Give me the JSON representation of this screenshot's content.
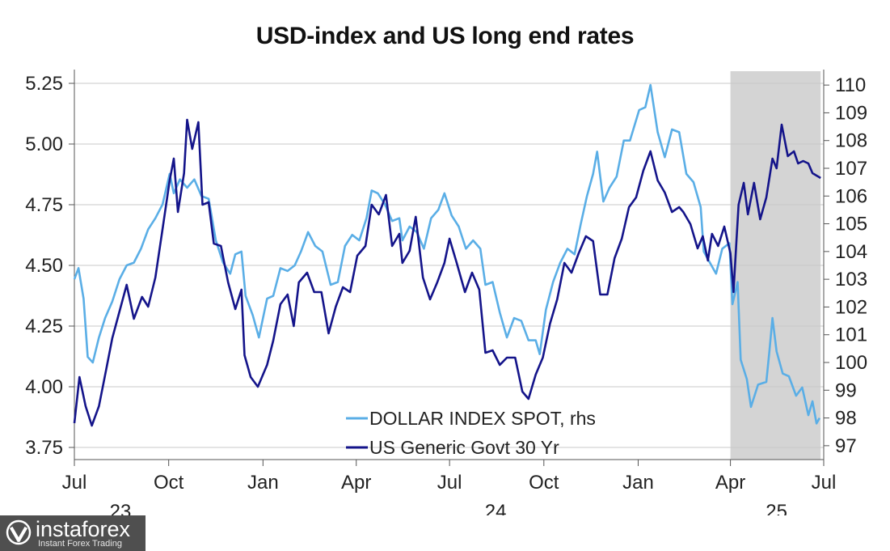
{
  "chart_data": {
    "type": "line",
    "title": "USD-index and US long end rates",
    "x_start": "2023-07-01",
    "x_end": "2025-07-01",
    "x_ticks": [
      {
        "date": "2023-07-01",
        "label": "Jul",
        "year": "23"
      },
      {
        "date": "2023-10-01",
        "label": "Oct",
        "year": ""
      },
      {
        "date": "2024-01-01",
        "label": "Jan",
        "year": ""
      },
      {
        "date": "2024-04-01",
        "label": "Apr",
        "year": ""
      },
      {
        "date": "2024-07-01",
        "label": "Jul",
        "year": "24"
      },
      {
        "date": "2024-10-01",
        "label": "Oct",
        "year": ""
      },
      {
        "date": "2025-01-01",
        "label": "Jan",
        "year": ""
      },
      {
        "date": "2025-04-01",
        "label": "Apr",
        "year": "25"
      },
      {
        "date": "2025-07-01",
        "label": "Jul",
        "year": ""
      }
    ],
    "y_left": {
      "lim": [
        3.7,
        5.3
      ],
      "ticks": [
        "3.75",
        "4.00",
        "4.25",
        "4.50",
        "4.75",
        "5.00",
        "5.25"
      ]
    },
    "y_right": {
      "lim": [
        96.5,
        110.5
      ],
      "ticks": [
        "97",
        "98",
        "99",
        "100",
        "101",
        "102",
        "103",
        "104",
        "105",
        "106",
        "107",
        "108",
        "109",
        "110"
      ]
    },
    "grid": true,
    "shaded_region": {
      "start": "2025-04-01",
      "end": "2025-06-28",
      "color": "#d4d4d4"
    },
    "legend_position": "bottom-center",
    "series": [
      {
        "name": "DOLLAR INDEX SPOT, rhs",
        "axis": "right",
        "color": "#5aaee6",
        "points": [
          [
            "2023-07-01",
            103.0
          ],
          [
            "2023-07-05",
            103.4
          ],
          [
            "2023-07-10",
            102.3
          ],
          [
            "2023-07-14",
            100.2
          ],
          [
            "2023-07-19",
            100.0
          ],
          [
            "2023-07-25",
            100.9
          ],
          [
            "2023-07-31",
            101.6
          ],
          [
            "2023-08-07",
            102.2
          ],
          [
            "2023-08-14",
            103.0
          ],
          [
            "2023-08-21",
            103.5
          ],
          [
            "2023-08-28",
            103.6
          ],
          [
            "2023-09-04",
            104.1
          ],
          [
            "2023-09-11",
            104.8
          ],
          [
            "2023-09-18",
            105.2
          ],
          [
            "2023-09-25",
            105.7
          ],
          [
            "2023-10-02",
            106.8
          ],
          [
            "2023-10-06",
            106.1
          ],
          [
            "2023-10-12",
            106.6
          ],
          [
            "2023-10-19",
            106.3
          ],
          [
            "2023-10-26",
            106.6
          ],
          [
            "2023-11-02",
            106.0
          ],
          [
            "2023-11-09",
            105.9
          ],
          [
            "2023-11-16",
            104.4
          ],
          [
            "2023-11-23",
            103.6
          ],
          [
            "2023-11-30",
            103.2
          ],
          [
            "2023-12-05",
            103.9
          ],
          [
            "2023-12-11",
            104.0
          ],
          [
            "2023-12-15",
            102.4
          ],
          [
            "2023-12-22",
            101.7
          ],
          [
            "2023-12-28",
            100.9
          ],
          [
            "2024-01-05",
            102.3
          ],
          [
            "2024-01-11",
            102.4
          ],
          [
            "2024-01-18",
            103.4
          ],
          [
            "2024-01-25",
            103.3
          ],
          [
            "2024-02-01",
            103.5
          ],
          [
            "2024-02-07",
            104.0
          ],
          [
            "2024-02-14",
            104.7
          ],
          [
            "2024-02-21",
            104.2
          ],
          [
            "2024-02-28",
            104.0
          ],
          [
            "2024-03-07",
            102.8
          ],
          [
            "2024-03-14",
            102.9
          ],
          [
            "2024-03-21",
            104.2
          ],
          [
            "2024-03-28",
            104.6
          ],
          [
            "2024-04-04",
            104.4
          ],
          [
            "2024-04-11",
            105.2
          ],
          [
            "2024-04-16",
            106.2
          ],
          [
            "2024-04-22",
            106.1
          ],
          [
            "2024-04-29",
            105.7
          ],
          [
            "2024-05-06",
            105.1
          ],
          [
            "2024-05-13",
            105.2
          ],
          [
            "2024-05-16",
            104.4
          ],
          [
            "2024-05-23",
            104.9
          ],
          [
            "2024-05-30",
            104.7
          ],
          [
            "2024-06-06",
            104.1
          ],
          [
            "2024-06-13",
            105.2
          ],
          [
            "2024-06-20",
            105.5
          ],
          [
            "2024-06-26",
            106.1
          ],
          [
            "2024-07-03",
            105.3
          ],
          [
            "2024-07-10",
            104.9
          ],
          [
            "2024-07-17",
            104.1
          ],
          [
            "2024-07-24",
            104.4
          ],
          [
            "2024-07-31",
            104.1
          ],
          [
            "2024-08-05",
            102.8
          ],
          [
            "2024-08-12",
            102.9
          ],
          [
            "2024-08-19",
            101.8
          ],
          [
            "2024-08-26",
            100.9
          ],
          [
            "2024-09-02",
            101.6
          ],
          [
            "2024-09-09",
            101.5
          ],
          [
            "2024-09-16",
            100.8
          ],
          [
            "2024-09-23",
            100.8
          ],
          [
            "2024-09-27",
            100.3
          ],
          [
            "2024-10-03",
            101.9
          ],
          [
            "2024-10-10",
            102.9
          ],
          [
            "2024-10-17",
            103.6
          ],
          [
            "2024-10-24",
            104.1
          ],
          [
            "2024-10-31",
            103.9
          ],
          [
            "2024-11-06",
            105.0
          ],
          [
            "2024-11-12",
            106.0
          ],
          [
            "2024-11-18",
            106.8
          ],
          [
            "2024-11-22",
            107.6
          ],
          [
            "2024-11-28",
            105.8
          ],
          [
            "2024-12-04",
            106.3
          ],
          [
            "2024-12-11",
            106.7
          ],
          [
            "2024-12-18",
            108.0
          ],
          [
            "2024-12-24",
            108.0
          ],
          [
            "2025-01-02",
            109.1
          ],
          [
            "2025-01-08",
            109.2
          ],
          [
            "2025-01-13",
            110.0
          ],
          [
            "2025-01-20",
            108.3
          ],
          [
            "2025-01-27",
            107.4
          ],
          [
            "2025-02-03",
            108.4
          ],
          [
            "2025-02-10",
            108.3
          ],
          [
            "2025-02-17",
            106.8
          ],
          [
            "2025-02-24",
            106.5
          ],
          [
            "2025-03-03",
            105.6
          ],
          [
            "2025-03-06",
            104.0
          ],
          [
            "2025-03-12",
            103.6
          ],
          [
            "2025-03-18",
            103.2
          ],
          [
            "2025-03-24",
            104.1
          ],
          [
            "2025-03-31",
            104.3
          ],
          [
            "2025-04-03",
            102.1
          ],
          [
            "2025-04-08",
            102.9
          ],
          [
            "2025-04-11",
            100.1
          ],
          [
            "2025-04-17",
            99.4
          ],
          [
            "2025-04-21",
            98.4
          ],
          [
            "2025-04-28",
            99.2
          ],
          [
            "2025-05-06",
            99.3
          ],
          [
            "2025-05-09",
            100.4
          ],
          [
            "2025-05-12",
            101.6
          ],
          [
            "2025-05-16",
            100.4
          ],
          [
            "2025-05-22",
            99.6
          ],
          [
            "2025-05-28",
            99.5
          ],
          [
            "2025-06-04",
            98.8
          ],
          [
            "2025-06-10",
            99.1
          ],
          [
            "2025-06-16",
            98.1
          ],
          [
            "2025-06-20",
            98.6
          ],
          [
            "2025-06-24",
            97.8
          ],
          [
            "2025-06-27",
            98.0
          ]
        ]
      },
      {
        "name": "US Generic Govt 30 Yr",
        "axis": "left",
        "color": "#14148a",
        "points": [
          [
            "2023-07-01",
            3.85
          ],
          [
            "2023-07-06",
            4.04
          ],
          [
            "2023-07-12",
            3.92
          ],
          [
            "2023-07-18",
            3.84
          ],
          [
            "2023-07-25",
            3.92
          ],
          [
            "2023-08-01",
            4.07
          ],
          [
            "2023-08-07",
            4.2
          ],
          [
            "2023-08-14",
            4.31
          ],
          [
            "2023-08-21",
            4.42
          ],
          [
            "2023-08-28",
            4.28
          ],
          [
            "2023-09-05",
            4.37
          ],
          [
            "2023-09-11",
            4.33
          ],
          [
            "2023-09-18",
            4.45
          ],
          [
            "2023-09-25",
            4.65
          ],
          [
            "2023-10-02",
            4.85
          ],
          [
            "2023-10-06",
            4.94
          ],
          [
            "2023-10-10",
            4.72
          ],
          [
            "2023-10-16",
            4.88
          ],
          [
            "2023-10-19",
            5.1
          ],
          [
            "2023-10-24",
            4.98
          ],
          [
            "2023-10-30",
            5.09
          ],
          [
            "2023-11-03",
            4.75
          ],
          [
            "2023-11-09",
            4.76
          ],
          [
            "2023-11-14",
            4.59
          ],
          [
            "2023-11-21",
            4.58
          ],
          [
            "2023-11-28",
            4.43
          ],
          [
            "2023-12-05",
            4.32
          ],
          [
            "2023-12-11",
            4.4
          ],
          [
            "2023-12-14",
            4.13
          ],
          [
            "2023-12-20",
            4.04
          ],
          [
            "2023-12-27",
            4.0
          ],
          [
            "2024-01-05",
            4.09
          ],
          [
            "2024-01-11",
            4.19
          ],
          [
            "2024-01-18",
            4.34
          ],
          [
            "2024-01-25",
            4.38
          ],
          [
            "2024-01-31",
            4.25
          ],
          [
            "2024-02-05",
            4.43
          ],
          [
            "2024-02-13",
            4.47
          ],
          [
            "2024-02-20",
            4.39
          ],
          [
            "2024-02-27",
            4.39
          ],
          [
            "2024-03-05",
            4.22
          ],
          [
            "2024-03-12",
            4.33
          ],
          [
            "2024-03-19",
            4.41
          ],
          [
            "2024-03-26",
            4.39
          ],
          [
            "2024-04-02",
            4.54
          ],
          [
            "2024-04-10",
            4.58
          ],
          [
            "2024-04-16",
            4.75
          ],
          [
            "2024-04-23",
            4.71
          ],
          [
            "2024-04-30",
            4.79
          ],
          [
            "2024-05-06",
            4.58
          ],
          [
            "2024-05-13",
            4.63
          ],
          [
            "2024-05-16",
            4.51
          ],
          [
            "2024-05-23",
            4.56
          ],
          [
            "2024-05-29",
            4.7
          ],
          [
            "2024-06-05",
            4.45
          ],
          [
            "2024-06-12",
            4.36
          ],
          [
            "2024-06-19",
            4.43
          ],
          [
            "2024-06-26",
            4.51
          ],
          [
            "2024-07-01",
            4.61
          ],
          [
            "2024-07-08",
            4.51
          ],
          [
            "2024-07-16",
            4.39
          ],
          [
            "2024-07-23",
            4.47
          ],
          [
            "2024-07-30",
            4.4
          ],
          [
            "2024-08-05",
            4.14
          ],
          [
            "2024-08-12",
            4.15
          ],
          [
            "2024-08-19",
            4.09
          ],
          [
            "2024-08-26",
            4.12
          ],
          [
            "2024-09-03",
            4.12
          ],
          [
            "2024-09-10",
            3.98
          ],
          [
            "2024-09-16",
            3.95
          ],
          [
            "2024-09-23",
            4.05
          ],
          [
            "2024-09-30",
            4.12
          ],
          [
            "2024-10-07",
            4.26
          ],
          [
            "2024-10-14",
            4.36
          ],
          [
            "2024-10-21",
            4.51
          ],
          [
            "2024-10-28",
            4.47
          ],
          [
            "2024-11-04",
            4.55
          ],
          [
            "2024-11-11",
            4.62
          ],
          [
            "2024-11-18",
            4.6
          ],
          [
            "2024-11-25",
            4.38
          ],
          [
            "2024-12-02",
            4.38
          ],
          [
            "2024-12-09",
            4.53
          ],
          [
            "2024-12-16",
            4.61
          ],
          [
            "2024-12-23",
            4.74
          ],
          [
            "2024-12-30",
            4.78
          ],
          [
            "2025-01-06",
            4.89
          ],
          [
            "2025-01-13",
            4.97
          ],
          [
            "2025-01-20",
            4.85
          ],
          [
            "2025-01-27",
            4.8
          ],
          [
            "2025-02-03",
            4.72
          ],
          [
            "2025-02-10",
            4.74
          ],
          [
            "2025-02-14",
            4.72
          ],
          [
            "2025-02-21",
            4.67
          ],
          [
            "2025-02-28",
            4.57
          ],
          [
            "2025-03-05",
            4.62
          ],
          [
            "2025-03-10",
            4.52
          ],
          [
            "2025-03-14",
            4.63
          ],
          [
            "2025-03-20",
            4.58
          ],
          [
            "2025-03-26",
            4.66
          ],
          [
            "2025-04-01",
            4.55
          ],
          [
            "2025-04-04",
            4.39
          ],
          [
            "2025-04-07",
            4.61
          ],
          [
            "2025-04-09",
            4.75
          ],
          [
            "2025-04-14",
            4.84
          ],
          [
            "2025-04-18",
            4.71
          ],
          [
            "2025-04-24",
            4.84
          ],
          [
            "2025-04-30",
            4.69
          ],
          [
            "2025-05-06",
            4.78
          ],
          [
            "2025-05-12",
            4.94
          ],
          [
            "2025-05-16",
            4.9
          ],
          [
            "2025-05-21",
            5.08
          ],
          [
            "2025-05-27",
            4.95
          ],
          [
            "2025-06-02",
            4.97
          ],
          [
            "2025-06-06",
            4.92
          ],
          [
            "2025-06-11",
            4.93
          ],
          [
            "2025-06-16",
            4.92
          ],
          [
            "2025-06-20",
            4.88
          ],
          [
            "2025-06-24",
            4.87
          ],
          [
            "2025-06-28",
            4.86
          ]
        ]
      }
    ]
  },
  "watermark": {
    "brand": "instaforex",
    "tagline": "Instant Forex Trading"
  }
}
